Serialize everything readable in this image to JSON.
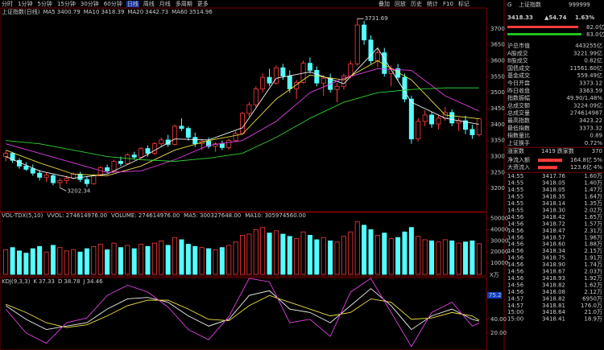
{
  "toolbar": {
    "tabs": [
      "分时",
      "1分钟",
      "5分钟",
      "15分钟",
      "30分钟",
      "60分钟",
      "日线",
      "周线",
      "月线",
      "多周期",
      "更多"
    ],
    "active": "日线",
    "tools": [
      "叠加",
      "回放",
      "历史",
      "统计",
      "F10",
      "标记"
    ]
  },
  "price_chart": {
    "type": "candlestick",
    "title": "上证指数(日线)",
    "ma": [
      {
        "name": "MA5",
        "value": "3400.79",
        "color": "#f0f0f0",
        "values": [
          3300,
          3255,
          3232,
          3245,
          3295,
          3355,
          3352,
          3390,
          3545,
          3565,
          3528,
          3640,
          3470,
          3420,
          3400.79
        ]
      },
      {
        "name": "MA10",
        "value": "3418.39",
        "color": "#f0e040",
        "values": [
          3320,
          3280,
          3245,
          3240,
          3270,
          3320,
          3350,
          3370,
          3480,
          3555,
          3540,
          3600,
          3540,
          3430,
          3418.39
        ]
      },
      {
        "name": "MA20",
        "value": "3442.73",
        "color": "#e040e0",
        "values": [
          3340,
          3310,
          3280,
          3250,
          3255,
          3290,
          3335,
          3350,
          3410,
          3500,
          3545,
          3575,
          3570,
          3490,
          3442.73
        ]
      },
      {
        "name": "MA60",
        "value": "3514.96",
        "color": "#30d030",
        "values": [
          3350,
          3340,
          3320,
          3300,
          3290,
          3285,
          3295,
          3310,
          3360,
          3420,
          3470,
          3500,
          3510,
          3515,
          3514.96
        ]
      }
    ],
    "ma_x": [
      0,
      5,
      10,
      15,
      20,
      25,
      30,
      35,
      40,
      45,
      50,
      55,
      60,
      65,
      70
    ],
    "candles": [
      [
        3300,
        3318,
        3285,
        3310
      ],
      [
        3310,
        3315,
        3280,
        3288
      ],
      [
        3288,
        3295,
        3262,
        3270
      ],
      [
        3270,
        3282,
        3255,
        3260
      ],
      [
        3262,
        3275,
        3240,
        3248
      ],
      [
        3248,
        3258,
        3225,
        3235
      ],
      [
        3235,
        3250,
        3220,
        3242
      ],
      [
        3240,
        3245,
        3210,
        3218
      ],
      [
        3218,
        3232,
        3202.34,
        3225
      ],
      [
        3225,
        3240,
        3215,
        3232
      ],
      [
        3232,
        3250,
        3228,
        3245
      ],
      [
        3245,
        3252,
        3220,
        3228
      ],
      [
        3228,
        3238,
        3205,
        3215
      ],
      [
        3215,
        3245,
        3212,
        3240
      ],
      [
        3240,
        3270,
        3238,
        3265
      ],
      [
        3265,
        3275,
        3248,
        3255
      ],
      [
        3255,
        3290,
        3250,
        3285
      ],
      [
        3285,
        3300,
        3270,
        3278
      ],
      [
        3278,
        3310,
        3275,
        3305
      ],
      [
        3305,
        3315,
        3290,
        3298
      ],
      [
        3298,
        3330,
        3295,
        3325
      ],
      [
        3325,
        3335,
        3300,
        3310
      ],
      [
        3310,
        3345,
        3305,
        3340
      ],
      [
        3340,
        3360,
        3330,
        3352
      ],
      [
        3352,
        3368,
        3330,
        3338
      ],
      [
        3338,
        3400,
        3335,
        3395
      ],
      [
        3395,
        3420,
        3380,
        3388
      ],
      [
        3388,
        3395,
        3350,
        3360
      ],
      [
        3360,
        3375,
        3330,
        3340
      ],
      [
        3340,
        3355,
        3320,
        3348
      ],
      [
        3348,
        3360,
        3325,
        3332
      ],
      [
        3332,
        3345,
        3315,
        3340
      ],
      [
        3340,
        3350,
        3320,
        3328
      ],
      [
        3328,
        3355,
        3322,
        3350
      ],
      [
        3350,
        3380,
        3345,
        3372
      ],
      [
        3372,
        3440,
        3368,
        3435
      ],
      [
        3435,
        3470,
        3425,
        3462
      ],
      [
        3462,
        3520,
        3455,
        3512
      ],
      [
        3512,
        3560,
        3500,
        3548
      ],
      [
        3548,
        3575,
        3520,
        3530
      ],
      [
        3530,
        3585,
        3525,
        3578
      ],
      [
        3578,
        3590,
        3540,
        3552
      ],
      [
        3552,
        3570,
        3500,
        3512
      ],
      [
        3512,
        3540,
        3480,
        3532
      ],
      [
        3532,
        3600,
        3528,
        3592
      ],
      [
        3592,
        3610,
        3560,
        3570
      ],
      [
        3570,
        3582,
        3520,
        3530
      ],
      [
        3530,
        3555,
        3490,
        3545
      ],
      [
        3545,
        3560,
        3500,
        3510
      ],
      [
        3510,
        3530,
        3470,
        3520
      ],
      [
        3520,
        3560,
        3510,
        3552
      ],
      [
        3552,
        3600,
        3545,
        3590
      ],
      [
        3590,
        3731.69,
        3585,
        3712
      ],
      [
        3712,
        3725,
        3650,
        3665
      ],
      [
        3665,
        3680,
        3590,
        3600
      ],
      [
        3600,
        3640,
        3580,
        3625
      ],
      [
        3625,
        3640,
        3550,
        3560
      ],
      [
        3560,
        3585,
        3520,
        3575
      ],
      [
        3575,
        3590,
        3540,
        3548
      ],
      [
        3548,
        3560,
        3470,
        3480
      ],
      [
        3480,
        3490,
        3340,
        3355
      ],
      [
        3355,
        3420,
        3348,
        3410
      ],
      [
        3410,
        3445,
        3395,
        3430
      ],
      [
        3430,
        3440,
        3390,
        3402
      ],
      [
        3402,
        3430,
        3385,
        3420
      ],
      [
        3420,
        3455,
        3412,
        3438
      ],
      [
        3438,
        3448,
        3395,
        3405
      ],
      [
        3405,
        3420,
        3380,
        3412
      ],
      [
        3412,
        3428,
        3370,
        3385
      ],
      [
        3385,
        3400,
        3355,
        3368
      ],
      [
        3368,
        3420,
        3363,
        3418.33
      ]
    ],
    "high_label": 3731.69,
    "high_index": 52,
    "low_label": 3202.34,
    "low_index": 8,
    "ylim": [
      3130,
      3760
    ],
    "yticks": [
      3200,
      3250,
      3300,
      3350,
      3400,
      3450,
      3500,
      3550,
      3600,
      3650,
      3700
    ]
  },
  "volume_chart": {
    "type": "bar",
    "legend": [
      "VOL-TDX(5,10)",
      "VVOL: 274614976.00",
      "VOLUME: 274614976.00",
      "MA5: 300327648.00",
      "MA10: 305974560.00"
    ],
    "values": [
      22000,
      24000,
      21000,
      19000,
      23000,
      25000,
      20000,
      26000,
      24000,
      21000,
      22000,
      20000,
      23000,
      25000,
      27000,
      22000,
      28000,
      24000,
      26000,
      23000,
      27000,
      25000,
      28000,
      30000,
      26000,
      33000,
      31000,
      27000,
      25000,
      24000,
      23000,
      22000,
      24000,
      26000,
      29000,
      35000,
      36000,
      40000,
      42000,
      37000,
      39000,
      36000,
      34000,
      32000,
      38000,
      35000,
      31000,
      33000,
      30000,
      29000,
      34000,
      38000,
      47000,
      44000,
      40000,
      35000,
      37000,
      32000,
      33000,
      38000,
      42000,
      34000,
      31000,
      30000,
      29000,
      31000,
      30000,
      28000,
      29000,
      30000,
      27461
    ],
    "ylim": [
      0,
      54000
    ],
    "yticks": [
      10000,
      20000,
      30000,
      40000,
      50000
    ],
    "unit_label": "X万"
  },
  "kdj_chart": {
    "type": "line",
    "title": "KDJ(9,3,3)",
    "x": [
      0,
      3,
      6,
      9,
      12,
      15,
      18,
      21,
      24,
      27,
      30,
      33,
      36,
      39,
      42,
      45,
      48,
      51,
      54,
      57,
      60,
      63,
      66,
      69,
      70
    ],
    "series": [
      {
        "name": "K",
        "value": "37.33",
        "color": "#f0f0f0",
        "values": [
          60,
          40,
          25,
          30,
          35,
          55,
          70,
          72,
          65,
          45,
          30,
          40,
          75,
          82,
          55,
          50,
          35,
          60,
          85,
          60,
          25,
          45,
          55,
          40,
          37.33
        ]
      },
      {
        "name": "D",
        "value": "38.78",
        "color": "#f0e040",
        "values": [
          62,
          50,
          35,
          28,
          32,
          45,
          60,
          68,
          68,
          55,
          40,
          38,
          60,
          75,
          65,
          55,
          45,
          50,
          70,
          65,
          40,
          42,
          50,
          45,
          38.78
        ]
      },
      {
        "name": "J",
        "value": "34.46",
        "color": "#e040e0",
        "values": [
          55,
          20,
          5,
          35,
          42,
          75,
          90,
          80,
          58,
          25,
          10,
          44,
          100,
          95,
          35,
          40,
          15,
          80,
          100,
          50,
          0,
          50,
          65,
          30,
          34.46
        ]
      }
    ],
    "ylim": [
      -5,
      100
    ],
    "yticks": [
      {
        "value": 20,
        "label": "20.00"
      },
      {
        "value": 40,
        "label": "40.00"
      }
    ],
    "highlight": 75.2
  },
  "side_panel": {
    "code_tag": "G",
    "name": "上证指数",
    "code": "999999",
    "price": "3418.33",
    "change": "▲54.74",
    "pct": "1.63%",
    "bar_top": "82.0亿",
    "bar_bottom": "83.0亿",
    "rows": [
      {
        "label": "沪总市值",
        "value": "443255亿",
        "color": "#e0e0e0"
      },
      {
        "label": "A股成交",
        "value": "3221.99亿",
        "color": "#f0e040"
      },
      {
        "label": "B股成交",
        "value": "0.82亿",
        "color": "#f0e040"
      },
      {
        "label": "国债成交",
        "value": "11561.60亿",
        "color": "#f0e040"
      },
      {
        "label": "基金成交",
        "value": "559.49亿",
        "color": "#f0e040"
      },
      {
        "label": "今日开盘",
        "value": "3373.12",
        "color": "#ff4040"
      },
      {
        "label": "昨日收盘",
        "value": "3363.59",
        "color": "#e0e0e0"
      },
      {
        "label": "指数振幅",
        "value": "49.90/1.48%",
        "color": "#e0e0e0"
      },
      {
        "label": "总成交额",
        "value": "3224.09亿",
        "color": "#f0e040"
      },
      {
        "label": "总成交量",
        "value": "274614987",
        "color": "#f0e040"
      },
      {
        "label": "最高指数",
        "value": "3423.22",
        "color": "#ff4040"
      },
      {
        "label": "最低指数",
        "value": "3373.32",
        "color": "#ff4040"
      },
      {
        "label": "指数量比",
        "value": "0.89",
        "color": "#30e030"
      },
      {
        "label": "上证换手",
        "value": "0.72%",
        "color": "#e0e0e0"
      }
    ],
    "breadth": {
      "up_label": "涨家数",
      "up": "1419",
      "down_label": "跌家数",
      "down": "370"
    },
    "flows": [
      {
        "label": "净流入额",
        "value": "164.8亿",
        "pct": "5%"
      },
      {
        "label": "大资流入",
        "value": "123.6亿",
        "pct": "4%"
      }
    ],
    "ticks": [
      [
        "14:55",
        "3417.76",
        "1.60万"
      ],
      [
        "14:55",
        "3418.05",
        "1.40万"
      ],
      [
        "14:55",
        "3418.05",
        "1.47万"
      ],
      [
        "14:55",
        "3418.35",
        "1.64万"
      ],
      [
        "14:55",
        "3418.14",
        "1.35万"
      ],
      [
        "14:55",
        "3418.30",
        "2.02万"
      ],
      [
        "14:56",
        "3418.42",
        "1.65万"
      ],
      [
        "14:56",
        "3418.72",
        "1.57万"
      ],
      [
        "14:56",
        "3418.47",
        "2.31万"
      ],
      [
        "14:56",
        "3418.57",
        "1.96万"
      ],
      [
        "14:56",
        "3418.60",
        "1.88万"
      ],
      [
        "14:56",
        "3418.34",
        "2.15万"
      ],
      [
        "14:56",
        "3418.75",
        "1.91万"
      ],
      [
        "14:56",
        "3418.90",
        "1.74万"
      ],
      [
        "14:56",
        "3418.67",
        "2.03万"
      ],
      [
        "14:56",
        "3418.93",
        "1.92万"
      ],
      [
        "14:56",
        "3418.82",
        "1.62万"
      ],
      [
        "14:56",
        "3418.08",
        "2.12万"
      ],
      [
        "14:57",
        "3418.82",
        "6950万"
      ],
      [
        "14:57",
        "3418.81",
        "176.0万"
      ],
      [
        "15:00",
        "3418.64",
        "21.0万"
      ],
      [
        "15:00",
        "3418.41",
        "18.9万"
      ]
    ]
  }
}
